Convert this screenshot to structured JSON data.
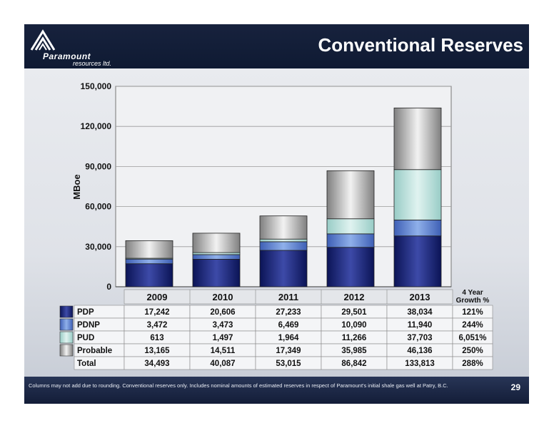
{
  "header": {
    "title": "Conventional Reserves"
  },
  "logo": {
    "name": "Paramount",
    "sub": "resources ltd."
  },
  "footer": {
    "footnote": "Columns may not add due to rounding. Conventional reserves only. Includes nominal amounts of estimated reserves in respect of Paramount's initial shale gas well at Patry, B.C.",
    "page_number": "29"
  },
  "colors": {
    "PDP": "#1f2a7a",
    "PDNP": "#5b7fd0",
    "PUD": "#bfe3df",
    "Probable": "#b4b4b4"
  },
  "chart_data": {
    "type": "bar",
    "stacked": true,
    "ylabel": "MBoe",
    "ylim": [
      0,
      150000
    ],
    "yticks": [
      0,
      30000,
      60000,
      90000,
      120000,
      150000
    ],
    "ytick_labels": [
      "0",
      "30,000",
      "60,000",
      "90,000",
      "120,000",
      "150,000"
    ],
    "categories": [
      "2009",
      "2010",
      "2011",
      "2012",
      "2013"
    ],
    "series": [
      {
        "name": "PDP",
        "values": [
          17242,
          20606,
          27233,
          29501,
          38034
        ]
      },
      {
        "name": "PDNP",
        "values": [
          3472,
          3473,
          6469,
          10090,
          11940
        ]
      },
      {
        "name": "PUD",
        "values": [
          613,
          1497,
          1964,
          11266,
          37703
        ]
      },
      {
        "name": "Probable",
        "values": [
          13165,
          14511,
          17349,
          35985,
          46136
        ]
      }
    ],
    "table": {
      "growth_header_line1": "4 Year",
      "growth_header_line2": "Growth %",
      "rows": [
        {
          "label": "PDP",
          "cells": [
            "17,242",
            "20,606",
            "27,233",
            "29,501",
            "38,034"
          ],
          "growth": "121%"
        },
        {
          "label": "PDNP",
          "cells": [
            "3,472",
            "3,473",
            "6,469",
            "10,090",
            "11,940"
          ],
          "growth": "244%"
        },
        {
          "label": "PUD",
          "cells": [
            "613",
            "1,497",
            "1,964",
            "11,266",
            "37,703"
          ],
          "growth": "6,051%"
        },
        {
          "label": "Probable",
          "cells": [
            "13,165",
            "14,511",
            "17,349",
            "35,985",
            "46,136"
          ],
          "growth": "250%"
        },
        {
          "label": "Total",
          "cells": [
            "34,493",
            "40,087",
            "53,015",
            "86,842",
            "133,813"
          ],
          "growth": "288%"
        }
      ]
    }
  }
}
